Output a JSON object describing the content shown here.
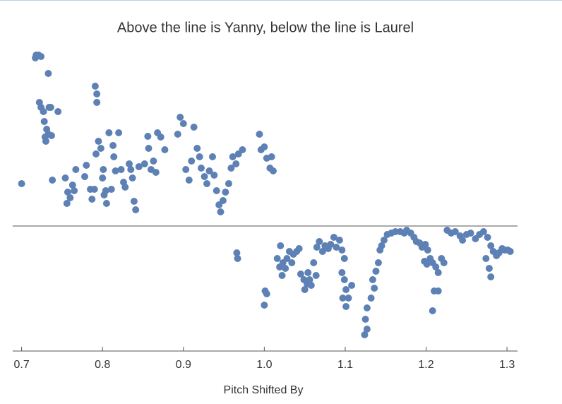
{
  "chart_data": {
    "type": "scatter",
    "title": "Above the line is Yanny, below the line is Laurel",
    "x_label": "Pitch Shifted By",
    "color": "#5e81b5",
    "xlim": [
      0.689,
      1.313
    ],
    "ylim": [
      -1.77,
      2.57
    ],
    "xticks": [
      0.7,
      0.8,
      0.9,
      {
        "value": 1,
        "label": "1.0"
      },
      1.1,
      1.2,
      1.3
    ],
    "x": [
      0.7,
      0.718,
      0.721,
      0.724,
      0.717,
      0.733,
      0.722,
      0.724,
      0.734,
      0.727,
      0.745,
      0.736,
      0.728,
      0.731,
      0.733,
      0.73,
      0.737,
      0.729,
      0.738,
      0.754,
      0.757,
      0.756,
      0.76,
      0.765,
      0.767,
      0.763,
      0.778,
      0.78,
      0.785,
      0.787,
      0.79,
      0.791,
      0.793,
      0.793,
      0.792,
      0.795,
      0.798,
      0.801,
      0.8,
      0.804,
      0.805,
      0.802,
      0.808,
      0.813,
      0.814,
      0.82,
      0.816,
      0.811,
      0.823,
      0.826,
      0.828,
      0.833,
      0.835,
      0.839,
      0.841,
      0.837,
      0.845,
      0.852,
      0.856,
      0.857,
      0.86,
      0.863,
      0.866,
      0.868,
      0.872,
      0.877,
      0.893,
      0.896,
      0.9,
      0.903,
      0.907,
      0.91,
      0.913,
      0.917,
      0.92,
      0.922,
      0.926,
      0.929,
      0.932,
      0.936,
      0.938,
      0.941,
      0.944,
      0.946,
      0.949,
      0.952,
      0.956,
      0.959,
      0.961,
      0.965,
      0.968,
      0.973,
      0.994,
      0.996,
      1.0,
      1.003,
      1.007,
      1.011,
      1.009,
      0.966,
      0.967,
      1.001,
      1.003,
      1.0,
      1.016,
      1.019,
      1.02,
      1.023,
      1.026,
      1.028,
      1.031,
      1.034,
      1.036,
      1.04,
      1.043,
      1.022,
      1.045,
      1.049,
      1.05,
      1.053,
      1.056,
      1.058,
      1.061,
      1.064,
      1.054,
      1.065,
      1.068,
      1.072,
      1.075,
      1.079,
      1.082,
      1.086,
      1.089,
      1.093,
      1.096,
      1.099,
      1.096,
      1.099,
      1.101,
      1.097,
      1.104,
      1.108,
      1.101,
      1.124,
      1.127,
      1.125,
      1.127,
      1.132,
      1.136,
      1.134,
      1.138,
      1.141,
      1.143,
      1.145,
      1.148,
      1.152,
      1.157,
      1.162,
      1.168,
      1.173,
      1.176,
      1.181,
      1.185,
      1.188,
      1.192,
      1.195,
      1.199,
      1.202,
      1.198,
      1.201,
      1.205,
      1.208,
      1.212,
      1.215,
      1.219,
      1.222,
      1.21,
      1.215,
      1.208,
      1.226,
      1.231,
      1.236,
      1.242,
      1.245,
      1.25,
      1.255,
      1.261,
      1.266,
      1.271,
      1.276,
      1.28,
      1.283,
      1.287,
      1.29,
      1.294,
      1.297,
      1.301,
      1.304,
      1.274,
      1.28,
      1.278
    ],
    "y": [
      0.6,
      2.42,
      2.42,
      2.4,
      2.38,
      2.16,
      1.75,
      1.68,
      1.68,
      1.62,
      1.62,
      1.68,
      1.48,
      1.37,
      1.3,
      1.2,
      1.28,
      1.26,
      0.65,
      0.68,
      0.48,
      0.32,
      0.4,
      0.5,
      0.8,
      0.58,
      0.7,
      0.86,
      0.52,
      0.38,
      0.52,
      1.98,
      1.87,
      1.75,
      1.02,
      1.2,
      1.1,
      0.8,
      0.68,
      0.5,
      0.32,
      0.44,
      1.32,
      1.14,
      0.98,
      1.32,
      0.78,
      0.52,
      0.8,
      0.62,
      0.55,
      0.88,
      0.8,
      0.35,
      0.23,
      0.68,
      0.84,
      0.88,
      1.27,
      1.1,
      0.8,
      0.92,
      0.76,
      1.32,
      1.26,
      1.08,
      1.3,
      1.54,
      1.45,
      0.8,
      0.65,
      0.92,
      1.4,
      1.1,
      0.98,
      0.82,
      0.7,
      0.6,
      0.78,
      0.98,
      0.72,
      0.5,
      0.3,
      0.2,
      0.36,
      0.48,
      0.6,
      0.82,
      0.98,
      0.88,
      1.02,
      1.08,
      1.3,
      1.08,
      1.12,
      0.96,
      0.82,
      0.78,
      0.98,
      -0.38,
      -0.46,
      -0.92,
      -0.96,
      -1.12,
      -0.46,
      -0.58,
      -0.28,
      -0.52,
      -0.6,
      -0.46,
      -0.36,
      -0.52,
      -0.4,
      -0.36,
      -0.32,
      -0.7,
      -0.68,
      -0.76,
      -0.9,
      -0.82,
      -0.76,
      -0.84,
      -0.52,
      -0.7,
      -0.66,
      -0.3,
      -0.22,
      -0.36,
      -0.28,
      -0.32,
      -0.26,
      -0.16,
      -0.3,
      -0.2,
      -0.34,
      -0.46,
      -0.66,
      -0.76,
      -0.9,
      -1.02,
      -1.02,
      -0.84,
      -1.14,
      -1.54,
      -1.46,
      -1.32,
      -1.16,
      -1.02,
      -0.88,
      -0.76,
      -0.64,
      -0.52,
      -0.34,
      -0.28,
      -0.2,
      -0.12,
      -0.1,
      -0.08,
      -0.08,
      -0.1,
      -0.06,
      -0.1,
      -0.16,
      -0.22,
      -0.24,
      -0.3,
      -0.26,
      -0.34,
      -0.5,
      -0.54,
      -0.46,
      -0.52,
      -0.58,
      -0.66,
      -0.46,
      -0.52,
      -0.92,
      -0.92,
      -1.2,
      -0.06,
      -0.1,
      -0.08,
      -0.14,
      -0.2,
      -0.12,
      -0.1,
      -0.18,
      -0.12,
      -0.08,
      -0.16,
      -0.28,
      -0.36,
      -0.42,
      -0.38,
      -0.32,
      -0.34,
      -0.34,
      -0.36,
      -0.46,
      -0.72,
      -0.6
    ]
  }
}
